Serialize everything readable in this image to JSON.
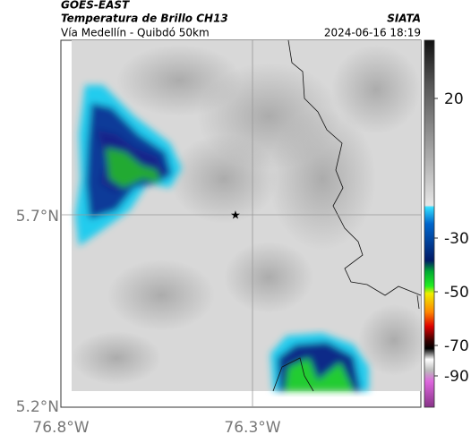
{
  "header": {
    "title": "GOES-EAST",
    "subtitle": "Temperatura de Brillo CH13",
    "route": "Vía Medellín - Quibdó 50km",
    "source": "SIATA",
    "timestamp": "2024-06-16 18:19"
  },
  "map": {
    "lat_labels": [
      "5.7°N",
      "5.2°N"
    ],
    "lon_labels": [
      "76.8°W",
      "76.3°W"
    ]
  },
  "colorbar": {
    "ticks": [
      20,
      -30,
      -50,
      -70,
      -90
    ]
  }
}
